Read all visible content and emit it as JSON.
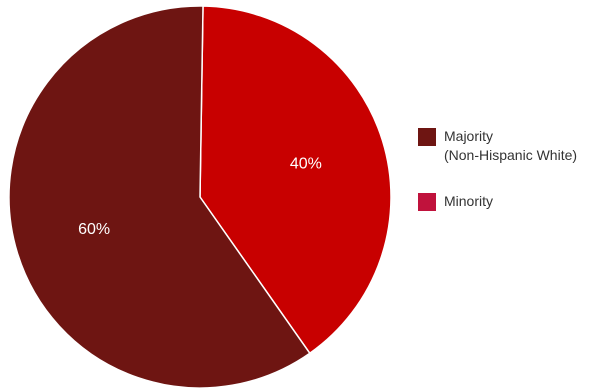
{
  "chart_data": {
    "type": "pie",
    "title": "",
    "legend_placement": "right",
    "slices": [
      {
        "label": "Majority",
        "label_line2": "(Non-Hispanic White)",
        "value": 60,
        "value_label": "60%",
        "color": "#6e1512"
      },
      {
        "label": "Minority",
        "label_line2": "",
        "value": 40,
        "value_label": "40%",
        "color": "#c80000"
      }
    ],
    "legend_swatch_colors": [
      "#6e1512",
      "#c0123c"
    ]
  }
}
